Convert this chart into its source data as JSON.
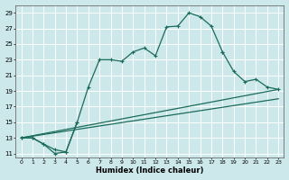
{
  "xlabel": "Humidex (Indice chaleur)",
  "xlim": [
    -0.5,
    23.5
  ],
  "ylim": [
    10.5,
    30
  ],
  "yticks": [
    11,
    13,
    15,
    17,
    19,
    21,
    23,
    25,
    27,
    29
  ],
  "xticks": [
    0,
    1,
    2,
    3,
    4,
    5,
    6,
    7,
    8,
    9,
    10,
    11,
    12,
    13,
    14,
    15,
    16,
    17,
    18,
    19,
    20,
    21,
    22,
    23
  ],
  "bg_color": "#cde8eb",
  "grid_color": "#ffffff",
  "line_color": "#1a6b5a",
  "curve1_x": [
    0,
    1,
    2,
    3,
    4,
    5,
    6,
    7,
    8,
    9,
    10,
    11,
    12,
    13,
    14,
    15,
    16,
    17,
    18
  ],
  "curve1_y": [
    13,
    13,
    12.2,
    11,
    11.2,
    15,
    19.5,
    23,
    23,
    22.8,
    24,
    24.5,
    23.5,
    27.2,
    27.3,
    29,
    28.5,
    27.3,
    24
  ],
  "curve2_x": [
    0,
    1,
    2,
    3,
    4,
    5
  ],
  "curve2_y": [
    13,
    13,
    12.2,
    11.5,
    11.2,
    15
  ],
  "line3_x": [
    0,
    23
  ],
  "line3_y": [
    13,
    19.2
  ],
  "line4_x": [
    0,
    23
  ],
  "line4_y": [
    13,
    18.0
  ],
  "curve5_x": [
    18,
    19,
    20,
    21,
    22,
    23
  ],
  "curve5_y": [
    24,
    21.5,
    20.2,
    20.5,
    19.5,
    19.2
  ]
}
